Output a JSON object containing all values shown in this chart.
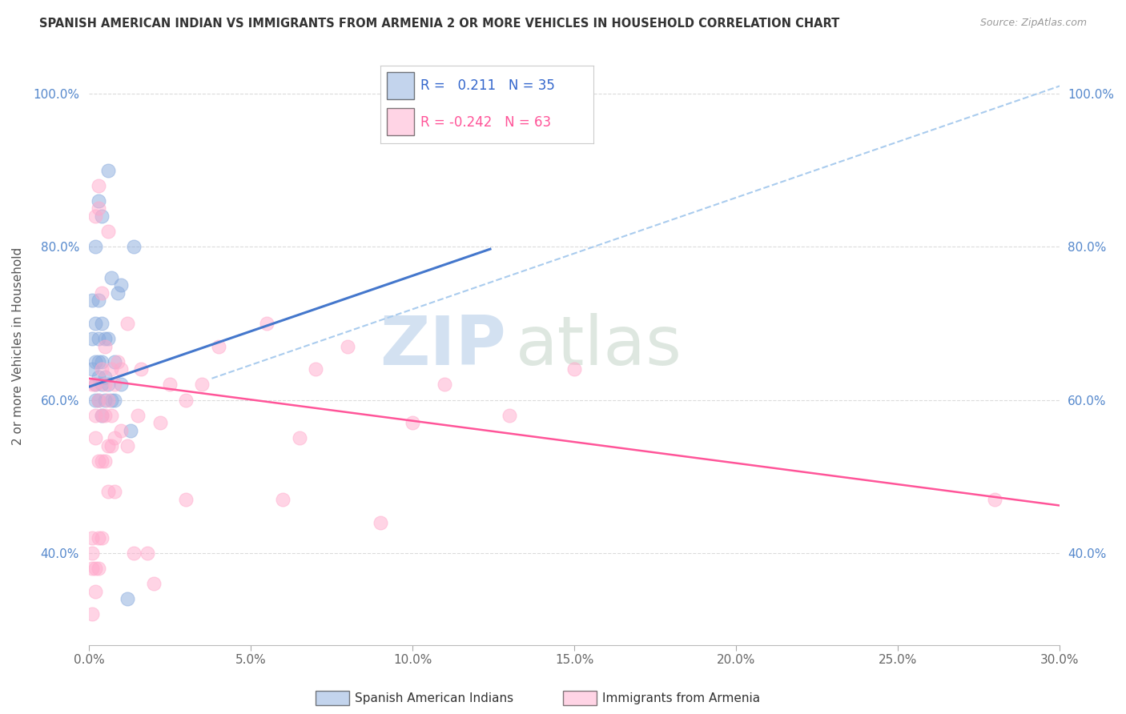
{
  "title": "SPANISH AMERICAN INDIAN VS IMMIGRANTS FROM ARMENIA 2 OR MORE VEHICLES IN HOUSEHOLD CORRELATION CHART",
  "source": "Source: ZipAtlas.com",
  "ylabel": "2 or more Vehicles in Household",
  "xlim": [
    0.0,
    0.3
  ],
  "ylim": [
    0.28,
    1.06
  ],
  "xticks": [
    0.0,
    0.05,
    0.1,
    0.15,
    0.2,
    0.25,
    0.3
  ],
  "xticklabels": [
    "0.0%",
    "5.0%",
    "10.0%",
    "15.0%",
    "20.0%",
    "25.0%",
    "30.0%"
  ],
  "yticks": [
    0.4,
    0.6,
    0.8,
    1.0
  ],
  "yticklabels": [
    "40.0%",
    "60.0%",
    "80.0%",
    "100.0%"
  ],
  "blue_color": "#88AADD",
  "pink_color": "#FFAACC",
  "blue_line_color": "#4477CC",
  "pink_line_color": "#FF5599",
  "dashed_line_color": "#AACCEE",
  "background_color": "#FFFFFF",
  "grid_color": "#CCCCCC",
  "watermark_zip": "ZIP",
  "watermark_atlas": "atlas",
  "blue_scatter_x": [
    0.001,
    0.001,
    0.001,
    0.002,
    0.002,
    0.002,
    0.002,
    0.003,
    0.003,
    0.003,
    0.003,
    0.003,
    0.004,
    0.004,
    0.004,
    0.004,
    0.005,
    0.005,
    0.005,
    0.006,
    0.006,
    0.007,
    0.007,
    0.008,
    0.008,
    0.009,
    0.01,
    0.01,
    0.012,
    0.013,
    0.014,
    0.002,
    0.003,
    0.004,
    0.006
  ],
  "blue_scatter_y": [
    0.64,
    0.68,
    0.73,
    0.6,
    0.62,
    0.65,
    0.7,
    0.6,
    0.63,
    0.65,
    0.68,
    0.73,
    0.58,
    0.62,
    0.65,
    0.7,
    0.6,
    0.63,
    0.68,
    0.62,
    0.68,
    0.6,
    0.76,
    0.6,
    0.65,
    0.74,
    0.62,
    0.75,
    0.34,
    0.56,
    0.8,
    0.8,
    0.86,
    0.84,
    0.9
  ],
  "pink_scatter_x": [
    0.001,
    0.001,
    0.001,
    0.001,
    0.001,
    0.002,
    0.002,
    0.002,
    0.002,
    0.002,
    0.003,
    0.003,
    0.003,
    0.003,
    0.004,
    0.004,
    0.004,
    0.004,
    0.005,
    0.005,
    0.005,
    0.005,
    0.006,
    0.006,
    0.006,
    0.007,
    0.007,
    0.007,
    0.008,
    0.008,
    0.008,
    0.009,
    0.01,
    0.01,
    0.012,
    0.012,
    0.014,
    0.015,
    0.016,
    0.018,
    0.02,
    0.022,
    0.025,
    0.03,
    0.03,
    0.035,
    0.04,
    0.055,
    0.06,
    0.065,
    0.07,
    0.08,
    0.09,
    0.1,
    0.11,
    0.13,
    0.15,
    0.28,
    0.002,
    0.003,
    0.003,
    0.004,
    0.006
  ],
  "pink_scatter_y": [
    0.32,
    0.38,
    0.4,
    0.42,
    0.62,
    0.35,
    0.38,
    0.55,
    0.58,
    0.62,
    0.38,
    0.42,
    0.52,
    0.6,
    0.42,
    0.52,
    0.58,
    0.64,
    0.52,
    0.58,
    0.62,
    0.67,
    0.48,
    0.54,
    0.6,
    0.54,
    0.58,
    0.64,
    0.48,
    0.55,
    0.62,
    0.65,
    0.56,
    0.64,
    0.54,
    0.7,
    0.4,
    0.58,
    0.64,
    0.4,
    0.36,
    0.57,
    0.62,
    0.47,
    0.6,
    0.62,
    0.67,
    0.7,
    0.47,
    0.55,
    0.64,
    0.67,
    0.44,
    0.57,
    0.62,
    0.58,
    0.64,
    0.47,
    0.84,
    0.85,
    0.88,
    0.74,
    0.82
  ],
  "blue_trend_x": [
    0.0,
    0.124
  ],
  "blue_trend_y": [
    0.617,
    0.797
  ],
  "pink_trend_x": [
    0.0,
    0.3
  ],
  "pink_trend_y": [
    0.628,
    0.462
  ],
  "dashed_trend_x": [
    0.038,
    0.3
  ],
  "dashed_trend_y": [
    0.628,
    1.01
  ],
  "legend_r1": "R=  0.211",
  "legend_n1": "N = 35",
  "legend_r2": "R = -0.242",
  "legend_n2": "N = 63",
  "legend_labels": [
    "Spanish American Indians",
    "Immigrants from Armenia"
  ]
}
